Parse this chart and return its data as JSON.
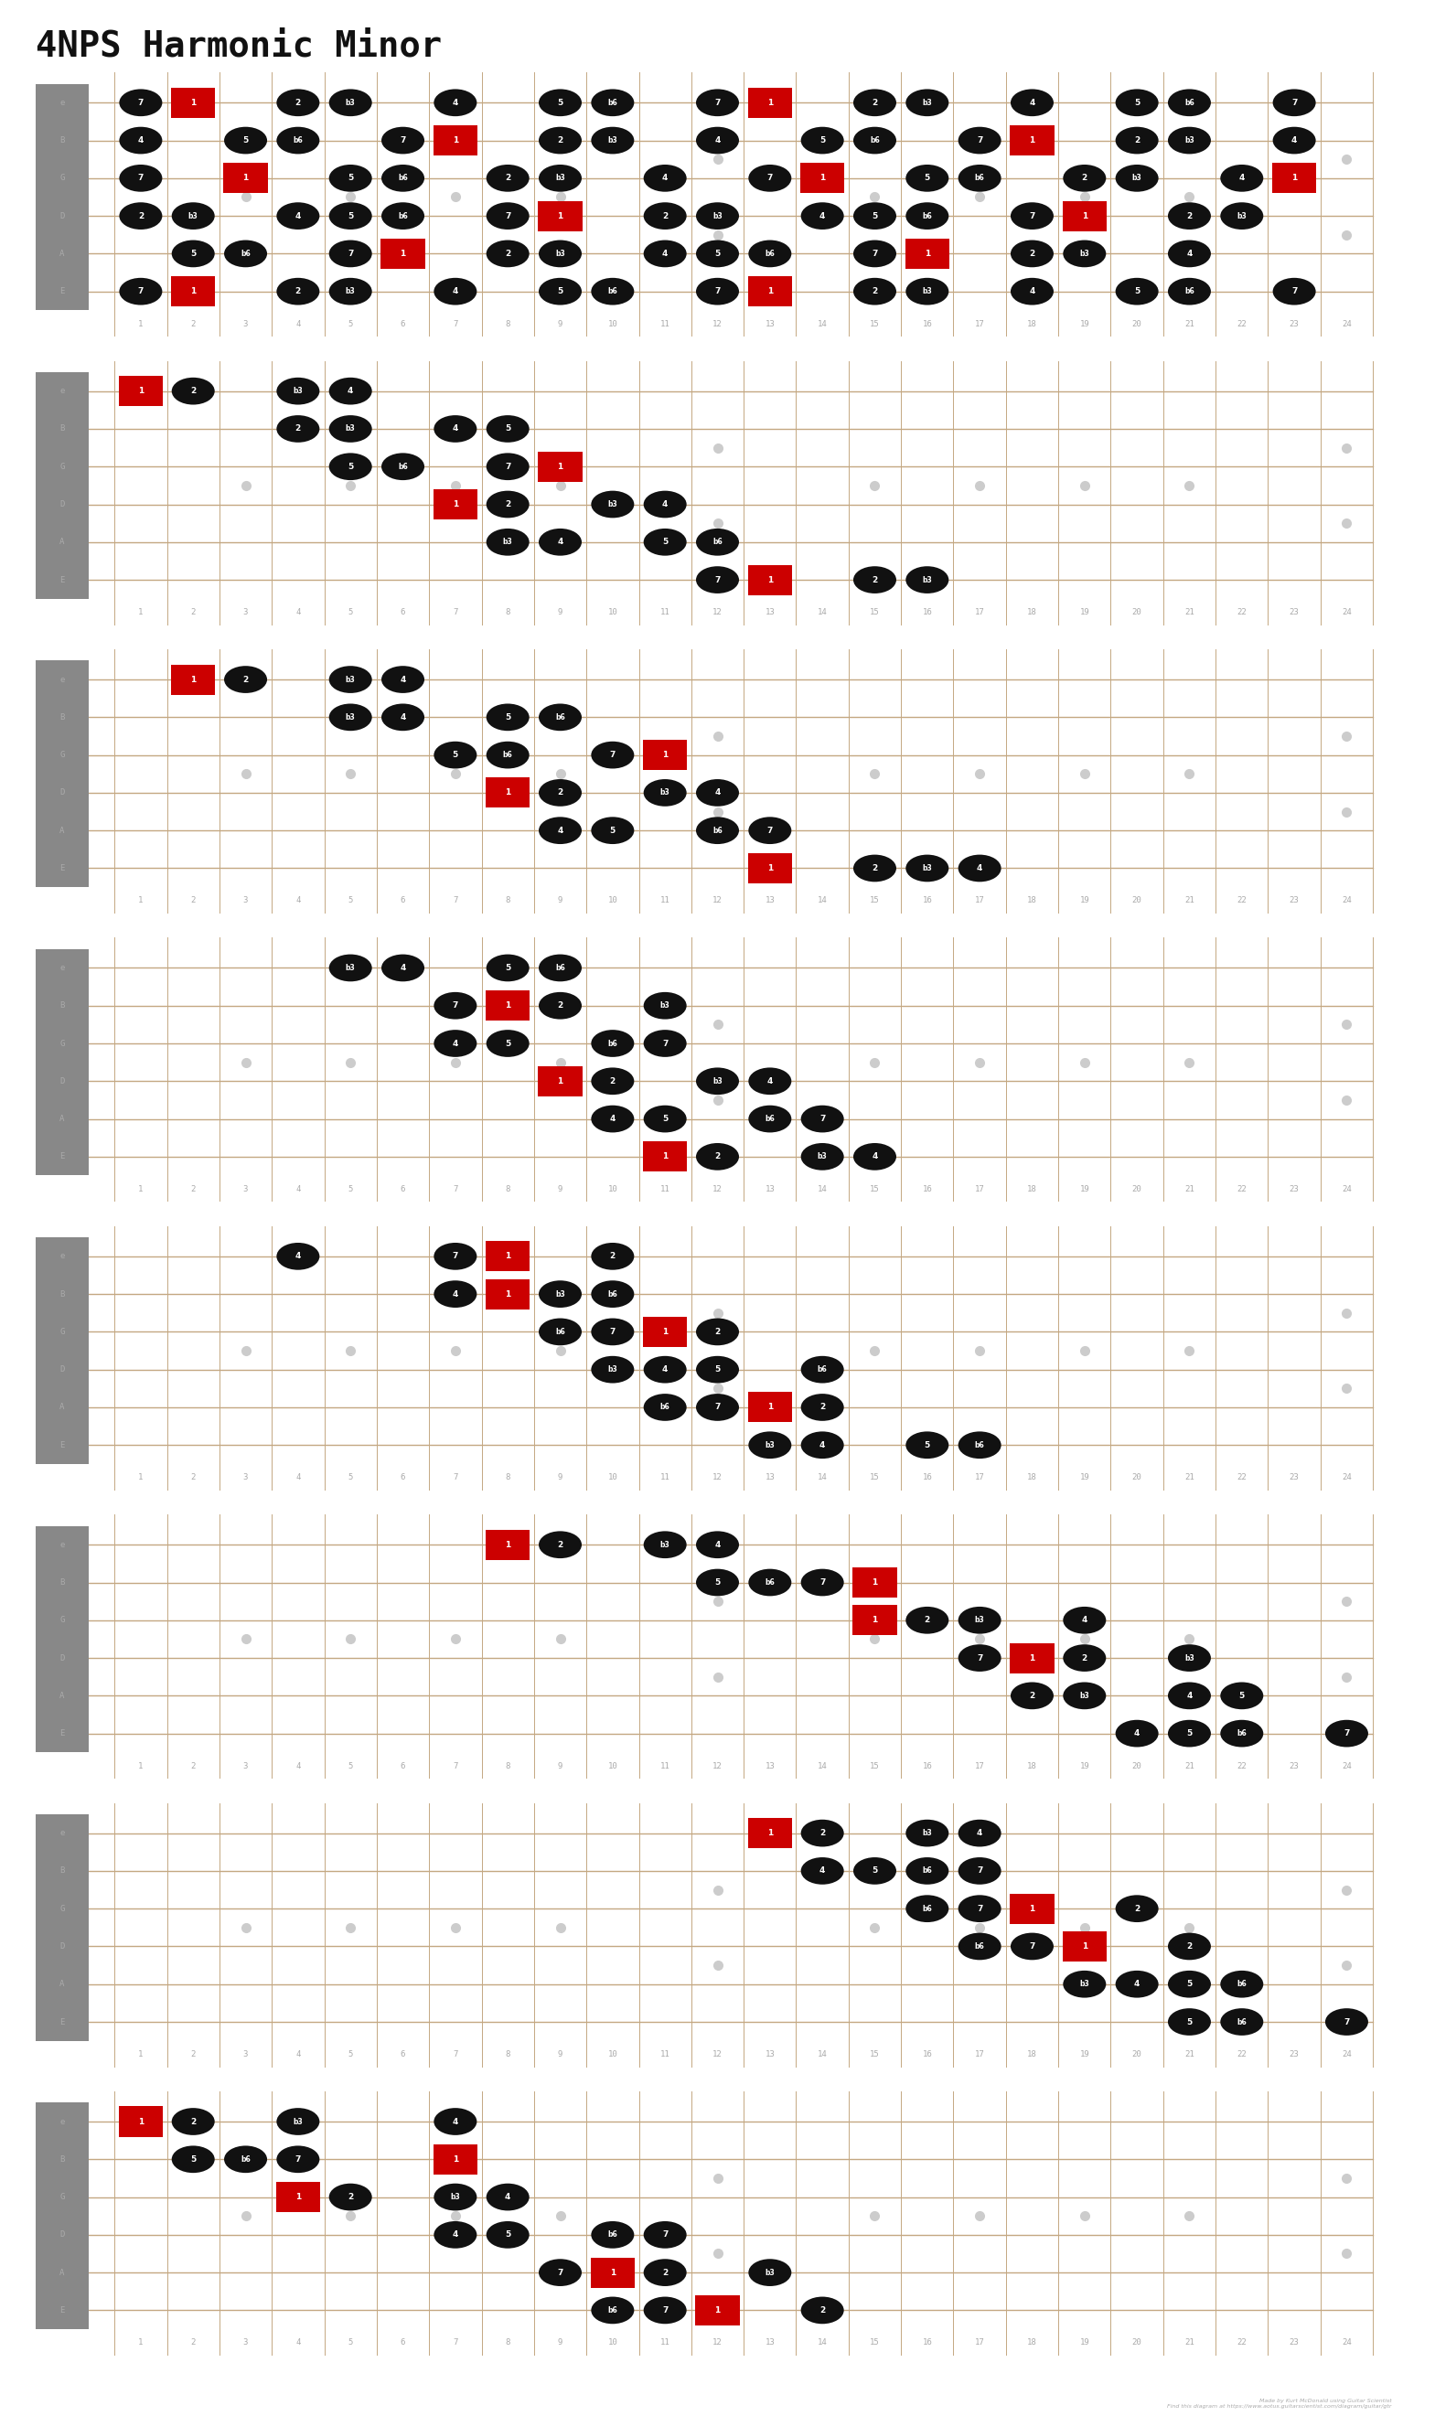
{
  "title": "4NPS Harmonic Minor",
  "num_frets": 24,
  "num_strings": 6,
  "string_labels": [
    "e",
    "B",
    "G",
    "D",
    "A",
    "E"
  ],
  "fret_markers": [
    3,
    5,
    7,
    9,
    12,
    15,
    17,
    19,
    21,
    24
  ],
  "double_dot_frets": [
    12,
    24
  ],
  "root_degree": "1",
  "bg_color": "#f5f0e8",
  "nut_color": "#888888",
  "string_color": "#c4a882",
  "fret_color": "#c4a882",
  "note_color": "#111111",
  "root_color": "#cc0000",
  "marker_color": "#cccccc",
  "title_color": "#111111",
  "fret_label_color": "#aaaaaa",
  "string_label_color": "#aaaaaa",
  "num_diagrams": 8,
  "footer": "Made by Kurt McDonald using Guitar Scientist\nFind this diagram at https://www.aotus.guitarscientist.com/diagram/guitar/gtr",
  "diagrams": [
    {
      "notes": [
        [
          1,
          6,
          "7"
        ],
        [
          2,
          6,
          "1"
        ],
        [
          4,
          6,
          "2"
        ],
        [
          5,
          6,
          "b3"
        ],
        [
          7,
          6,
          "4"
        ],
        [
          9,
          6,
          "5"
        ],
        [
          10,
          6,
          "b6"
        ],
        [
          12,
          6,
          "7"
        ],
        [
          13,
          6,
          "1"
        ],
        [
          15,
          6,
          "2"
        ],
        [
          16,
          6,
          "b3"
        ],
        [
          18,
          6,
          "4"
        ],
        [
          20,
          6,
          "5"
        ],
        [
          21,
          6,
          "b6"
        ],
        [
          23,
          6,
          "7"
        ],
        [
          2,
          5,
          "5"
        ],
        [
          3,
          5,
          "b6"
        ],
        [
          5,
          5,
          "7"
        ],
        [
          6,
          5,
          "1"
        ],
        [
          8,
          5,
          "2"
        ],
        [
          9,
          5,
          "b3"
        ],
        [
          11,
          5,
          "4"
        ],
        [
          12,
          5,
          "5"
        ],
        [
          13,
          5,
          "b6"
        ],
        [
          15,
          5,
          "7"
        ],
        [
          16,
          5,
          "1"
        ],
        [
          18,
          5,
          "2"
        ],
        [
          19,
          5,
          "b3"
        ],
        [
          21,
          5,
          "4"
        ],
        [
          1,
          4,
          "2"
        ],
        [
          2,
          4,
          "b3"
        ],
        [
          4,
          4,
          "4"
        ],
        [
          5,
          4,
          "5"
        ],
        [
          6,
          4,
          "b6"
        ],
        [
          8,
          4,
          "7"
        ],
        [
          9,
          4,
          "1"
        ],
        [
          11,
          4,
          "2"
        ],
        [
          12,
          4,
          "b3"
        ],
        [
          14,
          4,
          "4"
        ],
        [
          15,
          4,
          "5"
        ],
        [
          16,
          4,
          "b6"
        ],
        [
          18,
          4,
          "7"
        ],
        [
          19,
          4,
          "1"
        ],
        [
          21,
          4,
          "2"
        ],
        [
          22,
          4,
          "b3"
        ],
        [
          1,
          3,
          "7"
        ],
        [
          3,
          3,
          "1"
        ],
        [
          5,
          3,
          "5"
        ],
        [
          6,
          3,
          "b6"
        ],
        [
          8,
          3,
          "2"
        ],
        [
          9,
          3,
          "b3"
        ],
        [
          11,
          3,
          "4"
        ],
        [
          13,
          3,
          "7"
        ],
        [
          14,
          3,
          "1"
        ],
        [
          16,
          3,
          "5"
        ],
        [
          17,
          3,
          "b6"
        ],
        [
          19,
          3,
          "2"
        ],
        [
          20,
          3,
          "b3"
        ],
        [
          22,
          3,
          "4"
        ],
        [
          23,
          3,
          "1"
        ],
        [
          1,
          2,
          "4"
        ],
        [
          3,
          2,
          "5"
        ],
        [
          4,
          2,
          "b6"
        ],
        [
          6,
          2,
          "7"
        ],
        [
          7,
          2,
          "1"
        ],
        [
          9,
          2,
          "2"
        ],
        [
          10,
          2,
          "b3"
        ],
        [
          12,
          2,
          "4"
        ],
        [
          14,
          2,
          "5"
        ],
        [
          15,
          2,
          "b6"
        ],
        [
          17,
          2,
          "7"
        ],
        [
          18,
          2,
          "1"
        ],
        [
          20,
          2,
          "2"
        ],
        [
          21,
          2,
          "b3"
        ],
        [
          23,
          2,
          "4"
        ],
        [
          1,
          1,
          "7"
        ],
        [
          2,
          1,
          "1"
        ],
        [
          4,
          1,
          "2"
        ],
        [
          5,
          1,
          "b3"
        ],
        [
          7,
          1,
          "4"
        ],
        [
          9,
          1,
          "5"
        ],
        [
          10,
          1,
          "b6"
        ],
        [
          12,
          1,
          "7"
        ],
        [
          13,
          1,
          "1"
        ],
        [
          15,
          1,
          "2"
        ],
        [
          16,
          1,
          "b3"
        ],
        [
          18,
          1,
          "4"
        ],
        [
          20,
          1,
          "5"
        ],
        [
          21,
          1,
          "b6"
        ],
        [
          23,
          1,
          "7"
        ]
      ]
    },
    {
      "notes": [
        [
          12,
          6,
          "7"
        ],
        [
          13,
          6,
          "1"
        ],
        [
          15,
          6,
          "2"
        ],
        [
          16,
          6,
          "b3"
        ],
        [
          8,
          5,
          "b3"
        ],
        [
          9,
          5,
          "4"
        ],
        [
          11,
          5,
          "5"
        ],
        [
          12,
          5,
          "b6"
        ],
        [
          7,
          4,
          "1"
        ],
        [
          8,
          4,
          "2"
        ],
        [
          10,
          4,
          "b3"
        ],
        [
          11,
          4,
          "4"
        ],
        [
          5,
          3,
          "5"
        ],
        [
          6,
          3,
          "b6"
        ],
        [
          8,
          3,
          "7"
        ],
        [
          9,
          3,
          "1"
        ],
        [
          4,
          2,
          "2"
        ],
        [
          5,
          2,
          "b3"
        ],
        [
          7,
          2,
          "4"
        ],
        [
          8,
          2,
          "5"
        ],
        [
          1,
          1,
          "1"
        ],
        [
          2,
          1,
          "2"
        ],
        [
          4,
          1,
          "b3"
        ],
        [
          5,
          1,
          "4"
        ]
      ]
    },
    {
      "notes": [
        [
          13,
          6,
          "1"
        ],
        [
          15,
          6,
          "2"
        ],
        [
          16,
          6,
          "b3"
        ],
        [
          17,
          6,
          "4"
        ],
        [
          9,
          5,
          "4"
        ],
        [
          10,
          5,
          "5"
        ],
        [
          12,
          5,
          "b6"
        ],
        [
          13,
          5,
          "7"
        ],
        [
          8,
          4,
          "1"
        ],
        [
          9,
          4,
          "2"
        ],
        [
          11,
          4,
          "b3"
        ],
        [
          12,
          4,
          "4"
        ],
        [
          7,
          3,
          "5"
        ],
        [
          8,
          3,
          "b6"
        ],
        [
          10,
          3,
          "7"
        ],
        [
          11,
          3,
          "1"
        ],
        [
          5,
          2,
          "b3"
        ],
        [
          6,
          2,
          "4"
        ],
        [
          8,
          2,
          "5"
        ],
        [
          9,
          2,
          "b6"
        ],
        [
          2,
          1,
          "1"
        ],
        [
          3,
          1,
          "2"
        ],
        [
          5,
          1,
          "b3"
        ],
        [
          6,
          1,
          "4"
        ]
      ]
    },
    {
      "notes": [
        [
          11,
          6,
          "1"
        ],
        [
          12,
          6,
          "2"
        ],
        [
          14,
          6,
          "b3"
        ],
        [
          15,
          6,
          "4"
        ],
        [
          10,
          5,
          "4"
        ],
        [
          11,
          5,
          "5"
        ],
        [
          13,
          5,
          "b6"
        ],
        [
          14,
          5,
          "7"
        ],
        [
          9,
          4,
          "1"
        ],
        [
          10,
          4,
          "2"
        ],
        [
          12,
          4,
          "b3"
        ],
        [
          13,
          4,
          "4"
        ],
        [
          7,
          3,
          "4"
        ],
        [
          8,
          3,
          "5"
        ],
        [
          10,
          3,
          "b6"
        ],
        [
          11,
          3,
          "7"
        ],
        [
          7,
          2,
          "7"
        ],
        [
          8,
          2,
          "1"
        ],
        [
          9,
          2,
          "2"
        ],
        [
          11,
          2,
          "b3"
        ],
        [
          5,
          1,
          "b3"
        ],
        [
          6,
          1,
          "4"
        ],
        [
          8,
          1,
          "5"
        ],
        [
          9,
          1,
          "b6"
        ]
      ]
    },
    {
      "notes": [
        [
          13,
          6,
          "b3"
        ],
        [
          14,
          6,
          "4"
        ],
        [
          16,
          6,
          "5"
        ],
        [
          17,
          6,
          "b6"
        ],
        [
          11,
          5,
          "b6"
        ],
        [
          12,
          5,
          "7"
        ],
        [
          13,
          5,
          "1"
        ],
        [
          14,
          5,
          "2"
        ],
        [
          10,
          4,
          "b3"
        ],
        [
          11,
          4,
          "4"
        ],
        [
          12,
          4,
          "5"
        ],
        [
          14,
          4,
          "b6"
        ],
        [
          9,
          3,
          "b6"
        ],
        [
          10,
          3,
          "7"
        ],
        [
          11,
          3,
          "1"
        ],
        [
          12,
          3,
          "2"
        ],
        [
          7,
          2,
          "4"
        ],
        [
          8,
          2,
          "1"
        ],
        [
          9,
          2,
          "b3"
        ],
        [
          10,
          2,
          "b6"
        ],
        [
          4,
          1,
          "4"
        ],
        [
          7,
          1,
          "7"
        ],
        [
          8,
          1,
          "1"
        ],
        [
          10,
          1,
          "2"
        ]
      ]
    },
    {
      "notes": [
        [
          20,
          6,
          "4"
        ],
        [
          21,
          6,
          "5"
        ],
        [
          22,
          6,
          "b6"
        ],
        [
          24,
          6,
          "7"
        ],
        [
          18,
          5,
          "2"
        ],
        [
          19,
          5,
          "b3"
        ],
        [
          21,
          5,
          "4"
        ],
        [
          22,
          5,
          "5"
        ],
        [
          17,
          4,
          "7"
        ],
        [
          18,
          4,
          "1"
        ],
        [
          19,
          4,
          "2"
        ],
        [
          21,
          4,
          "b3"
        ],
        [
          15,
          3,
          "1"
        ],
        [
          16,
          3,
          "2"
        ],
        [
          17,
          3,
          "b3"
        ],
        [
          19,
          3,
          "4"
        ],
        [
          12,
          2,
          "5"
        ],
        [
          13,
          2,
          "b6"
        ],
        [
          14,
          2,
          "7"
        ],
        [
          15,
          2,
          "1"
        ],
        [
          8,
          1,
          "1"
        ],
        [
          9,
          1,
          "2"
        ],
        [
          11,
          1,
          "b3"
        ],
        [
          12,
          1,
          "4"
        ]
      ]
    },
    {
      "notes": [
        [
          21,
          6,
          "5"
        ],
        [
          22,
          6,
          "b6"
        ],
        [
          24,
          6,
          "7"
        ],
        [
          19,
          5,
          "b3"
        ],
        [
          20,
          5,
          "4"
        ],
        [
          21,
          5,
          "5"
        ],
        [
          22,
          5,
          "b6"
        ],
        [
          17,
          4,
          "b6"
        ],
        [
          18,
          4,
          "7"
        ],
        [
          19,
          4,
          "1"
        ],
        [
          21,
          4,
          "2"
        ],
        [
          16,
          3,
          "b6"
        ],
        [
          17,
          3,
          "7"
        ],
        [
          18,
          3,
          "1"
        ],
        [
          20,
          3,
          "2"
        ],
        [
          14,
          2,
          "4"
        ],
        [
          15,
          2,
          "5"
        ],
        [
          16,
          2,
          "b6"
        ],
        [
          17,
          2,
          "7"
        ],
        [
          13,
          1,
          "1"
        ],
        [
          14,
          1,
          "2"
        ],
        [
          16,
          1,
          "b3"
        ],
        [
          17,
          1,
          "4"
        ]
      ]
    },
    {
      "notes": [
        [
          10,
          6,
          "b6"
        ],
        [
          11,
          6,
          "7"
        ],
        [
          12,
          6,
          "1"
        ],
        [
          14,
          6,
          "2"
        ],
        [
          9,
          5,
          "7"
        ],
        [
          10,
          5,
          "1"
        ],
        [
          11,
          5,
          "2"
        ],
        [
          13,
          5,
          "b3"
        ],
        [
          7,
          4,
          "4"
        ],
        [
          8,
          4,
          "5"
        ],
        [
          10,
          4,
          "b6"
        ],
        [
          11,
          4,
          "7"
        ],
        [
          4,
          3,
          "1"
        ],
        [
          5,
          3,
          "2"
        ],
        [
          7,
          3,
          "b3"
        ],
        [
          8,
          3,
          "4"
        ],
        [
          2,
          2,
          "5"
        ],
        [
          3,
          2,
          "b6"
        ],
        [
          4,
          2,
          "7"
        ],
        [
          7,
          2,
          "1"
        ],
        [
          1,
          1,
          "1"
        ],
        [
          2,
          1,
          "2"
        ],
        [
          4,
          1,
          "b3"
        ],
        [
          7,
          1,
          "4"
        ]
      ]
    }
  ]
}
